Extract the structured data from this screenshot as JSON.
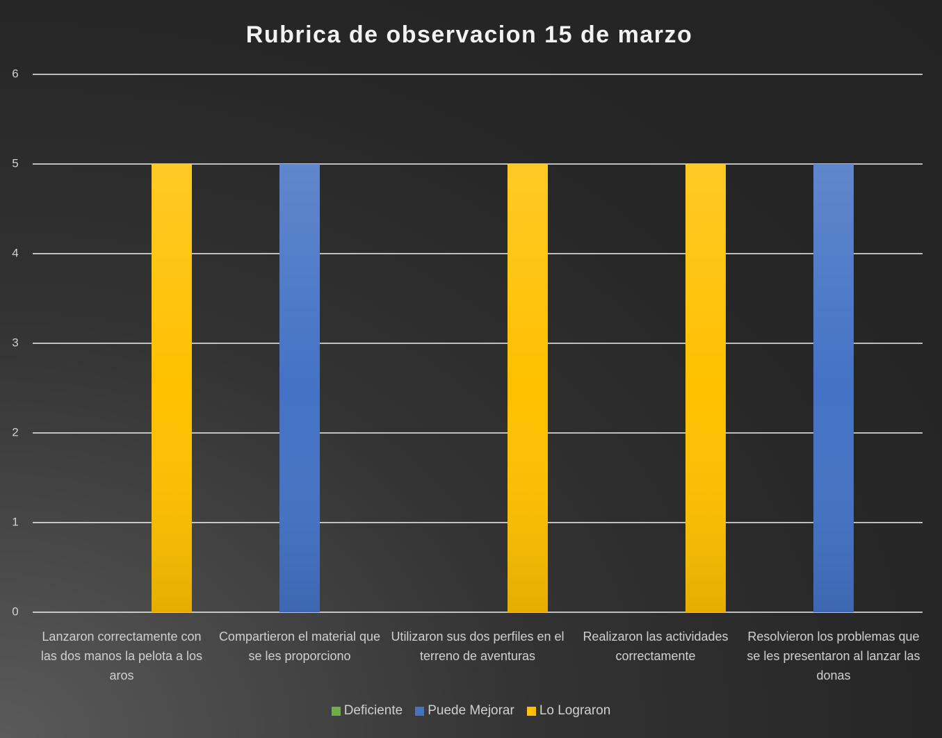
{
  "chart_data": {
    "type": "bar",
    "title": "Rubrica de observacion 15 de marzo",
    "categories": [
      "Lanzaron correctamente con las dos manos la pelota a los aros",
      "Compartieron el material que se les proporciono",
      "Utilizaron sus dos perfiles en el terreno de aventuras",
      "Realizaron las actividades correctamente",
      "Resolvieron los problemas que se les presentaron al lanzar las donas"
    ],
    "series": [
      {
        "name": "Deficiente",
        "color": "#70ad47",
        "values": [
          0,
          0,
          0,
          0,
          0
        ]
      },
      {
        "name": "Puede Mejorar",
        "color": "#4472c4",
        "values": [
          0,
          5,
          0,
          0,
          5
        ]
      },
      {
        "name": "Lo Lograron",
        "color": "#ffc000",
        "values": [
          5,
          0,
          5,
          5,
          0
        ]
      }
    ],
    "ylim": [
      0,
      6
    ],
    "yticks": [
      0,
      1,
      2,
      3,
      4,
      5,
      6
    ],
    "grid": true,
    "legend": "bottom"
  }
}
